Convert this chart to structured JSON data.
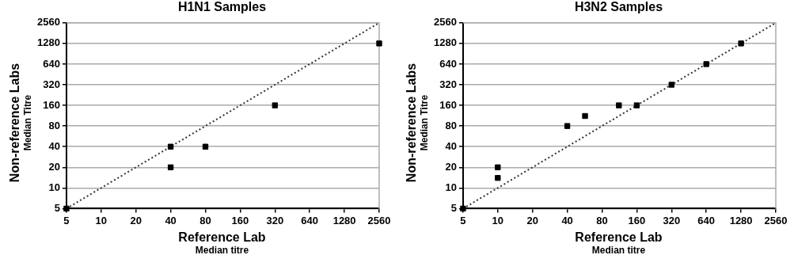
{
  "chart_data": [
    {
      "type": "scatter",
      "title": "H1N1 Samples",
      "xlabel": "Reference Lab\nMedian titre",
      "ylabel": "Non-reference Labs\nMedian Titre",
      "log": "xy",
      "grid": "y",
      "marker": "square",
      "xlim": [
        5,
        2560
      ],
      "ylim": [
        5,
        2560
      ],
      "xticks": [
        5,
        10,
        20,
        40,
        80,
        160,
        320,
        640,
        1280,
        2560
      ],
      "yticks": [
        5,
        10,
        20,
        40,
        80,
        160,
        320,
        640,
        1280,
        2560
      ],
      "series": [
        {
          "color": "#000000",
          "x": [
            5,
            40,
            40,
            80,
            320,
            2560
          ],
          "values": [
            5,
            40,
            20,
            40,
            160,
            1280
          ]
        },
        {
          "type": "line",
          "color": "#333333",
          "line_style": "dotted",
          "marker": "none",
          "x": [
            5,
            2560
          ],
          "values": [
            5,
            2560
          ]
        }
      ]
    },
    {
      "type": "scatter",
      "title": "H3N2 Samples",
      "xlabel": "Reference Lab\nMedian titre",
      "ylabel": "Non-reference Labs\nMedian Titre",
      "log": "xy",
      "grid": "y",
      "marker": "square",
      "xlim": [
        5,
        2560
      ],
      "ylim": [
        5,
        2560
      ],
      "xticks": [
        5,
        10,
        20,
        40,
        80,
        160,
        320,
        640,
        1280,
        2560
      ],
      "yticks": [
        5,
        10,
        20,
        40,
        80,
        160,
        320,
        640,
        1280,
        2560
      ],
      "series": [
        {
          "color": "#000000",
          "x": [
            5,
            10,
            10,
            40,
            57,
            112,
            160,
            320,
            640,
            1280
          ],
          "values": [
            5,
            20,
            14,
            80,
            112,
            160,
            160,
            320,
            640,
            1280
          ]
        },
        {
          "type": "line",
          "color": "#333333",
          "line_style": "dotted",
          "marker": "none",
          "x": [
            5,
            2560
          ],
          "values": [
            5,
            2560
          ]
        }
      ]
    }
  ]
}
